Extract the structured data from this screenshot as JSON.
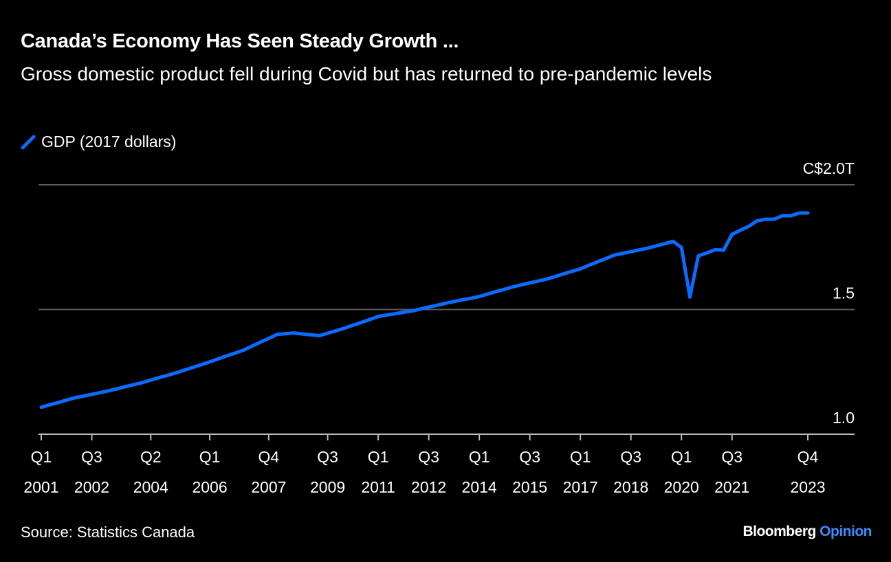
{
  "header": {
    "title": "Canada’s Economy Has Seen Steady Growth ...",
    "subtitle": "Gross domestic product fell during Covid but has returned to pre-pandemic levels"
  },
  "footer": {
    "source": "Source: Statistics Canada",
    "brand_main": "Bloomberg",
    "brand_accent": "Opinion"
  },
  "colors": {
    "line": "#0a6cff",
    "grid": "#5a5a5a",
    "background": "#000000",
    "brand_accent": "#3b8cff"
  },
  "chart_data": {
    "type": "line",
    "title": "Canada’s Economy Has Seen Steady Growth ...",
    "subtitle": "Gross domestic product fell during Covid but has returned to pre-pandemic levels",
    "legend_position": "top-left",
    "grid": "horizontal",
    "ylim": [
      1.0,
      2.0
    ],
    "y_ticks": [
      {
        "value": 2.0,
        "label": "C$2.0T"
      },
      {
        "value": 1.5,
        "label": "1.5"
      },
      {
        "value": 1.0,
        "label": "1.0"
      }
    ],
    "x_range": [
      "2001 Q1",
      "2023 Q4"
    ],
    "x_ticks": [
      {
        "index": 0,
        "q": "Q1",
        "year": "2001"
      },
      {
        "index": 6,
        "q": "Q3",
        "year": "2002"
      },
      {
        "index": 13,
        "q": "Q2",
        "year": "2004"
      },
      {
        "index": 20,
        "q": "Q1",
        "year": "2006"
      },
      {
        "index": 27,
        "q": "Q4",
        "year": "2007"
      },
      {
        "index": 34,
        "q": "Q3",
        "year": "2009"
      },
      {
        "index": 40,
        "q": "Q1",
        "year": "2011"
      },
      {
        "index": 46,
        "q": "Q3",
        "year": "2012"
      },
      {
        "index": 52,
        "q": "Q1",
        "year": "2014"
      },
      {
        "index": 58,
        "q": "Q3",
        "year": "2015"
      },
      {
        "index": 64,
        "q": "Q1",
        "year": "2017"
      },
      {
        "index": 70,
        "q": "Q3",
        "year": "2018"
      },
      {
        "index": 76,
        "q": "Q1",
        "year": "2020"
      },
      {
        "index": 82,
        "q": "Q3",
        "year": "2021"
      },
      {
        "index": 91,
        "q": "Q4",
        "year": "2023"
      }
    ],
    "series": [
      {
        "name": "GDP (2017 dollars)",
        "start": "2001 Q1",
        "frequency": "quarterly",
        "values": [
          1.108,
          1.118,
          1.127,
          1.137,
          1.146,
          1.153,
          1.16,
          1.167,
          1.174,
          1.182,
          1.191,
          1.199,
          1.207,
          1.217,
          1.227,
          1.236,
          1.246,
          1.257,
          1.268,
          1.279,
          1.29,
          1.302,
          1.314,
          1.325,
          1.337,
          1.353,
          1.369,
          1.384,
          1.4,
          1.403,
          1.406,
          1.402,
          1.399,
          1.395,
          1.405,
          1.415,
          1.425,
          1.437,
          1.448,
          1.46,
          1.472,
          1.478,
          1.483,
          1.489,
          1.494,
          1.502,
          1.51,
          1.517,
          1.525,
          1.532,
          1.539,
          1.545,
          1.552,
          1.562,
          1.572,
          1.581,
          1.591,
          1.599,
          1.607,
          1.614,
          1.622,
          1.632,
          1.643,
          1.653,
          1.663,
          1.677,
          1.691,
          1.704,
          1.718,
          1.725,
          1.732,
          1.739,
          1.746,
          1.755,
          1.764,
          1.773,
          1.749,
          1.55,
          1.715,
          1.727,
          1.74,
          1.738,
          1.801,
          1.818,
          1.834,
          1.856,
          1.862,
          1.862,
          1.876,
          1.876,
          1.887,
          1.887
        ]
      }
    ]
  }
}
